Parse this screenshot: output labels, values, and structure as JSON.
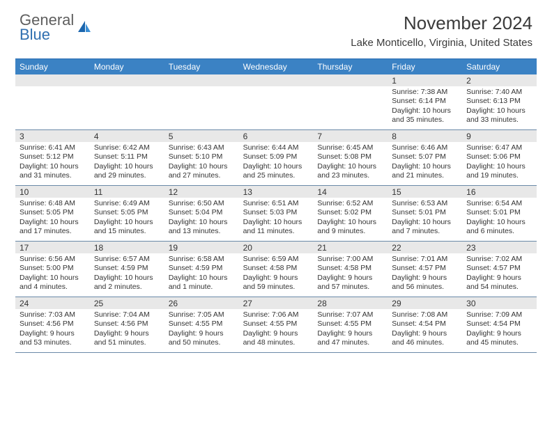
{
  "logo": {
    "line1": "General",
    "line2": "Blue"
  },
  "title": "November 2024",
  "location": "Lake Monticello, Virginia, United States",
  "colors": {
    "header_bg": "#3b82c4",
    "header_border": "#2a6db3",
    "week_border": "#6a89a8",
    "daynum_bg": "#e8e8e8",
    "logo_gray": "#5e5e5e",
    "logo_blue": "#2f6fb0"
  },
  "day_labels": [
    "Sunday",
    "Monday",
    "Tuesday",
    "Wednesday",
    "Thursday",
    "Friday",
    "Saturday"
  ],
  "weeks": [
    [
      {
        "n": "",
        "sunrise": "",
        "sunset": "",
        "daylight": ""
      },
      {
        "n": "",
        "sunrise": "",
        "sunset": "",
        "daylight": ""
      },
      {
        "n": "",
        "sunrise": "",
        "sunset": "",
        "daylight": ""
      },
      {
        "n": "",
        "sunrise": "",
        "sunset": "",
        "daylight": ""
      },
      {
        "n": "",
        "sunrise": "",
        "sunset": "",
        "daylight": ""
      },
      {
        "n": "1",
        "sunrise": "Sunrise: 7:38 AM",
        "sunset": "Sunset: 6:14 PM",
        "daylight": "Daylight: 10 hours and 35 minutes."
      },
      {
        "n": "2",
        "sunrise": "Sunrise: 7:40 AM",
        "sunset": "Sunset: 6:13 PM",
        "daylight": "Daylight: 10 hours and 33 minutes."
      }
    ],
    [
      {
        "n": "3",
        "sunrise": "Sunrise: 6:41 AM",
        "sunset": "Sunset: 5:12 PM",
        "daylight": "Daylight: 10 hours and 31 minutes."
      },
      {
        "n": "4",
        "sunrise": "Sunrise: 6:42 AM",
        "sunset": "Sunset: 5:11 PM",
        "daylight": "Daylight: 10 hours and 29 minutes."
      },
      {
        "n": "5",
        "sunrise": "Sunrise: 6:43 AM",
        "sunset": "Sunset: 5:10 PM",
        "daylight": "Daylight: 10 hours and 27 minutes."
      },
      {
        "n": "6",
        "sunrise": "Sunrise: 6:44 AM",
        "sunset": "Sunset: 5:09 PM",
        "daylight": "Daylight: 10 hours and 25 minutes."
      },
      {
        "n": "7",
        "sunrise": "Sunrise: 6:45 AM",
        "sunset": "Sunset: 5:08 PM",
        "daylight": "Daylight: 10 hours and 23 minutes."
      },
      {
        "n": "8",
        "sunrise": "Sunrise: 6:46 AM",
        "sunset": "Sunset: 5:07 PM",
        "daylight": "Daylight: 10 hours and 21 minutes."
      },
      {
        "n": "9",
        "sunrise": "Sunrise: 6:47 AM",
        "sunset": "Sunset: 5:06 PM",
        "daylight": "Daylight: 10 hours and 19 minutes."
      }
    ],
    [
      {
        "n": "10",
        "sunrise": "Sunrise: 6:48 AM",
        "sunset": "Sunset: 5:05 PM",
        "daylight": "Daylight: 10 hours and 17 minutes."
      },
      {
        "n": "11",
        "sunrise": "Sunrise: 6:49 AM",
        "sunset": "Sunset: 5:05 PM",
        "daylight": "Daylight: 10 hours and 15 minutes."
      },
      {
        "n": "12",
        "sunrise": "Sunrise: 6:50 AM",
        "sunset": "Sunset: 5:04 PM",
        "daylight": "Daylight: 10 hours and 13 minutes."
      },
      {
        "n": "13",
        "sunrise": "Sunrise: 6:51 AM",
        "sunset": "Sunset: 5:03 PM",
        "daylight": "Daylight: 10 hours and 11 minutes."
      },
      {
        "n": "14",
        "sunrise": "Sunrise: 6:52 AM",
        "sunset": "Sunset: 5:02 PM",
        "daylight": "Daylight: 10 hours and 9 minutes."
      },
      {
        "n": "15",
        "sunrise": "Sunrise: 6:53 AM",
        "sunset": "Sunset: 5:01 PM",
        "daylight": "Daylight: 10 hours and 7 minutes."
      },
      {
        "n": "16",
        "sunrise": "Sunrise: 6:54 AM",
        "sunset": "Sunset: 5:01 PM",
        "daylight": "Daylight: 10 hours and 6 minutes."
      }
    ],
    [
      {
        "n": "17",
        "sunrise": "Sunrise: 6:56 AM",
        "sunset": "Sunset: 5:00 PM",
        "daylight": "Daylight: 10 hours and 4 minutes."
      },
      {
        "n": "18",
        "sunrise": "Sunrise: 6:57 AM",
        "sunset": "Sunset: 4:59 PM",
        "daylight": "Daylight: 10 hours and 2 minutes."
      },
      {
        "n": "19",
        "sunrise": "Sunrise: 6:58 AM",
        "sunset": "Sunset: 4:59 PM",
        "daylight": "Daylight: 10 hours and 1 minute."
      },
      {
        "n": "20",
        "sunrise": "Sunrise: 6:59 AM",
        "sunset": "Sunset: 4:58 PM",
        "daylight": "Daylight: 9 hours and 59 minutes."
      },
      {
        "n": "21",
        "sunrise": "Sunrise: 7:00 AM",
        "sunset": "Sunset: 4:58 PM",
        "daylight": "Daylight: 9 hours and 57 minutes."
      },
      {
        "n": "22",
        "sunrise": "Sunrise: 7:01 AM",
        "sunset": "Sunset: 4:57 PM",
        "daylight": "Daylight: 9 hours and 56 minutes."
      },
      {
        "n": "23",
        "sunrise": "Sunrise: 7:02 AM",
        "sunset": "Sunset: 4:57 PM",
        "daylight": "Daylight: 9 hours and 54 minutes."
      }
    ],
    [
      {
        "n": "24",
        "sunrise": "Sunrise: 7:03 AM",
        "sunset": "Sunset: 4:56 PM",
        "daylight": "Daylight: 9 hours and 53 minutes."
      },
      {
        "n": "25",
        "sunrise": "Sunrise: 7:04 AM",
        "sunset": "Sunset: 4:56 PM",
        "daylight": "Daylight: 9 hours and 51 minutes."
      },
      {
        "n": "26",
        "sunrise": "Sunrise: 7:05 AM",
        "sunset": "Sunset: 4:55 PM",
        "daylight": "Daylight: 9 hours and 50 minutes."
      },
      {
        "n": "27",
        "sunrise": "Sunrise: 7:06 AM",
        "sunset": "Sunset: 4:55 PM",
        "daylight": "Daylight: 9 hours and 48 minutes."
      },
      {
        "n": "28",
        "sunrise": "Sunrise: 7:07 AM",
        "sunset": "Sunset: 4:55 PM",
        "daylight": "Daylight: 9 hours and 47 minutes."
      },
      {
        "n": "29",
        "sunrise": "Sunrise: 7:08 AM",
        "sunset": "Sunset: 4:54 PM",
        "daylight": "Daylight: 9 hours and 46 minutes."
      },
      {
        "n": "30",
        "sunrise": "Sunrise: 7:09 AM",
        "sunset": "Sunset: 4:54 PM",
        "daylight": "Daylight: 9 hours and 45 minutes."
      }
    ]
  ]
}
